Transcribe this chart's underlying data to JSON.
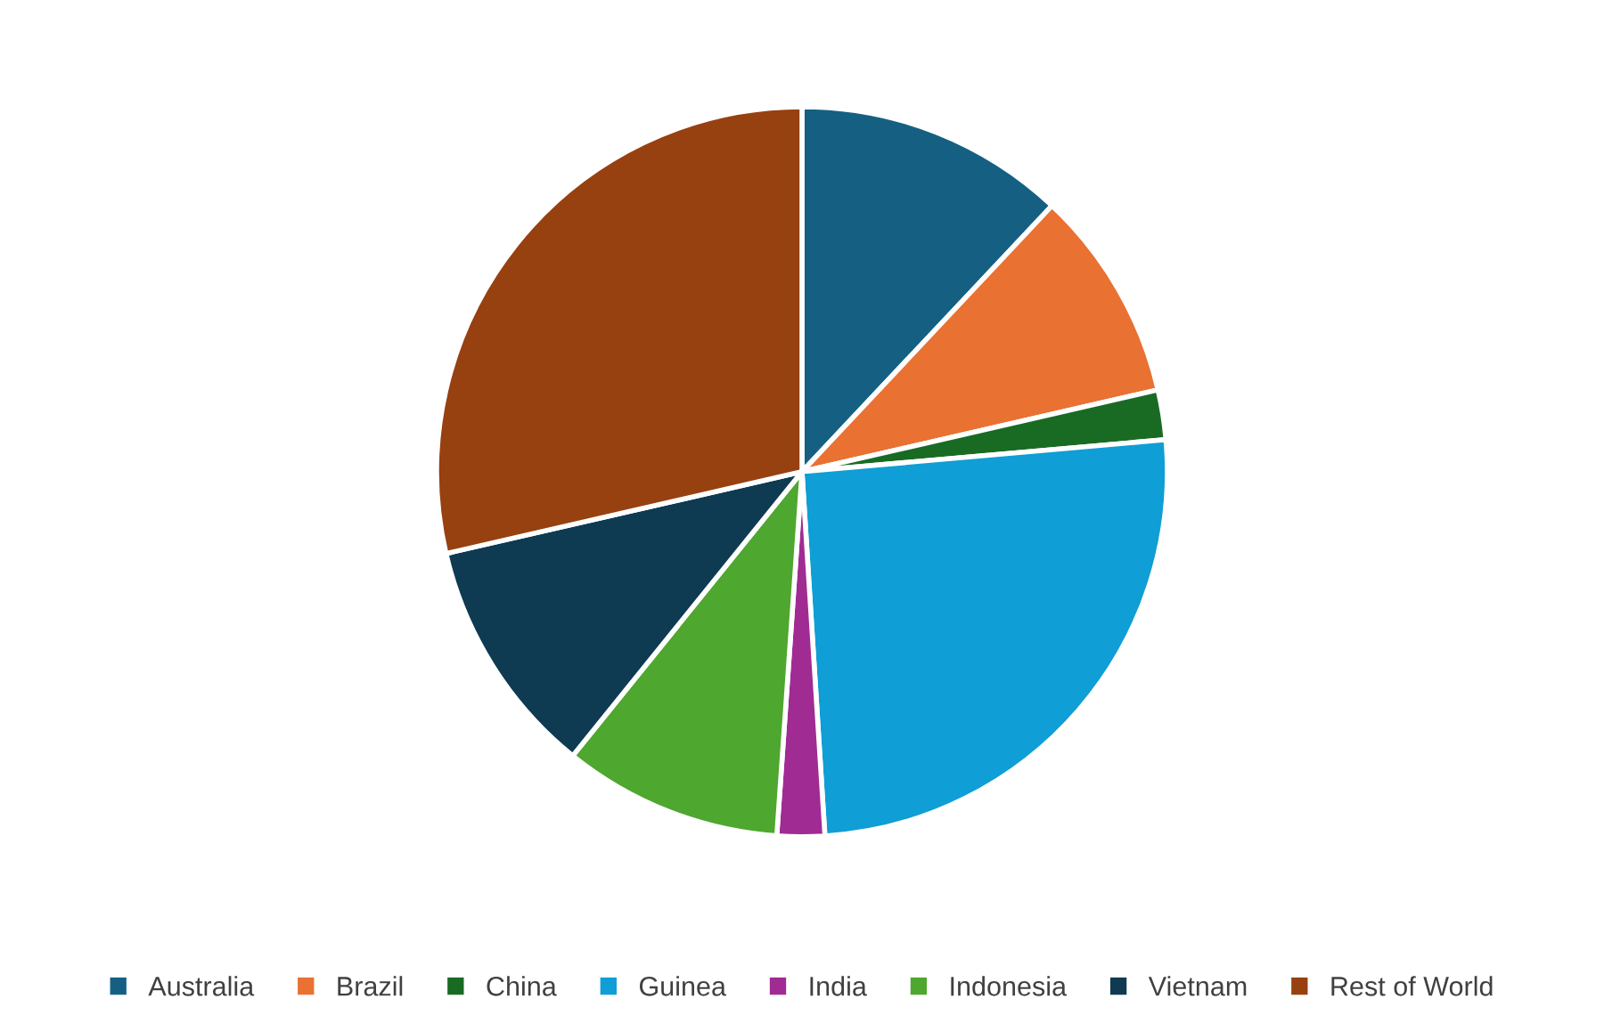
{
  "chart_data": {
    "type": "pie",
    "categories": [
      "Australia",
      "Brazil",
      "China",
      "Guinea",
      "India",
      "Indonesia",
      "Vietnam",
      "Rest of World"
    ],
    "values": [
      12.0,
      9.4,
      2.2,
      25.4,
      2.1,
      9.7,
      10.6,
      28.6
    ],
    "colors": [
      "#156082",
      "#e97132",
      "#196b24",
      "#0f9ed5",
      "#a02b93",
      "#4ea72e",
      "#0e3a52",
      "#974010"
    ],
    "legend": "bottom"
  }
}
